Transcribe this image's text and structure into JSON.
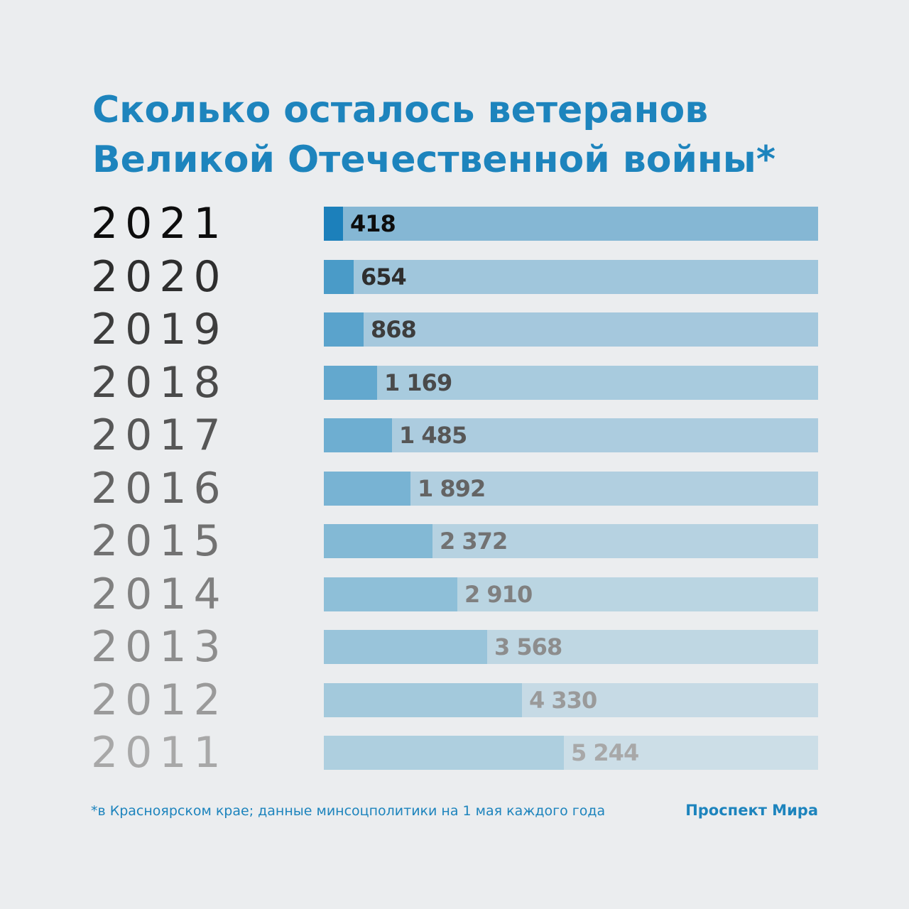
{
  "title_lines": [
    "Сколько  осталось ветеранов",
    "Великой Отечественной войны*"
  ],
  "footnote": "*в Красноярском крае; данные минсоцполитики на 1 мая каждого года",
  "brand": "Проспект Мира",
  "chart_data": {
    "type": "bar",
    "orientation": "horizontal",
    "title": "Сколько  осталось ветеранов Великой Отечественной войны*",
    "xlim": [
      0,
      10800
    ],
    "categories": [
      "2021",
      "2020",
      "2019",
      "2018",
      "2017",
      "2016",
      "2015",
      "2014",
      "2013",
      "2012",
      "2011"
    ],
    "values": [
      418,
      654,
      868,
      1169,
      1485,
      1892,
      2372,
      2910,
      3568,
      4330,
      5244
    ],
    "value_labels": [
      "418",
      "654",
      "868",
      "1 169",
      "1 485",
      "1 892",
      "2 372",
      "2 910",
      "3 568",
      "4 330",
      "5 244"
    ],
    "colors": {
      "title": "#1d84bd",
      "year_text": [
        "#0d0d0d",
        "#2e2e2e",
        "#3d3d3d",
        "#4a4a4a",
        "#575757",
        "#646464",
        "#727272",
        "#808080",
        "#8d8d8d",
        "#9a9a9a",
        "#a8a8a8"
      ],
      "fill": [
        "#1c80bb",
        "#4a9bc8",
        "#5aa3cc",
        "#63a8ce",
        "#6eaed1",
        "#78b3d3",
        "#83b9d5",
        "#8ebfd8",
        "#99c4da",
        "#a3c9dc",
        "#aecfdf"
      ],
      "track": [
        "#85b7d4",
        "#a0c6dc",
        "#a5c8dd",
        "#a8cbde",
        "#acccdf",
        "#b1cfe0",
        "#b6d2e1",
        "#bad5e2",
        "#bfd7e3",
        "#c6dae5",
        "#ccdee7"
      ]
    }
  }
}
